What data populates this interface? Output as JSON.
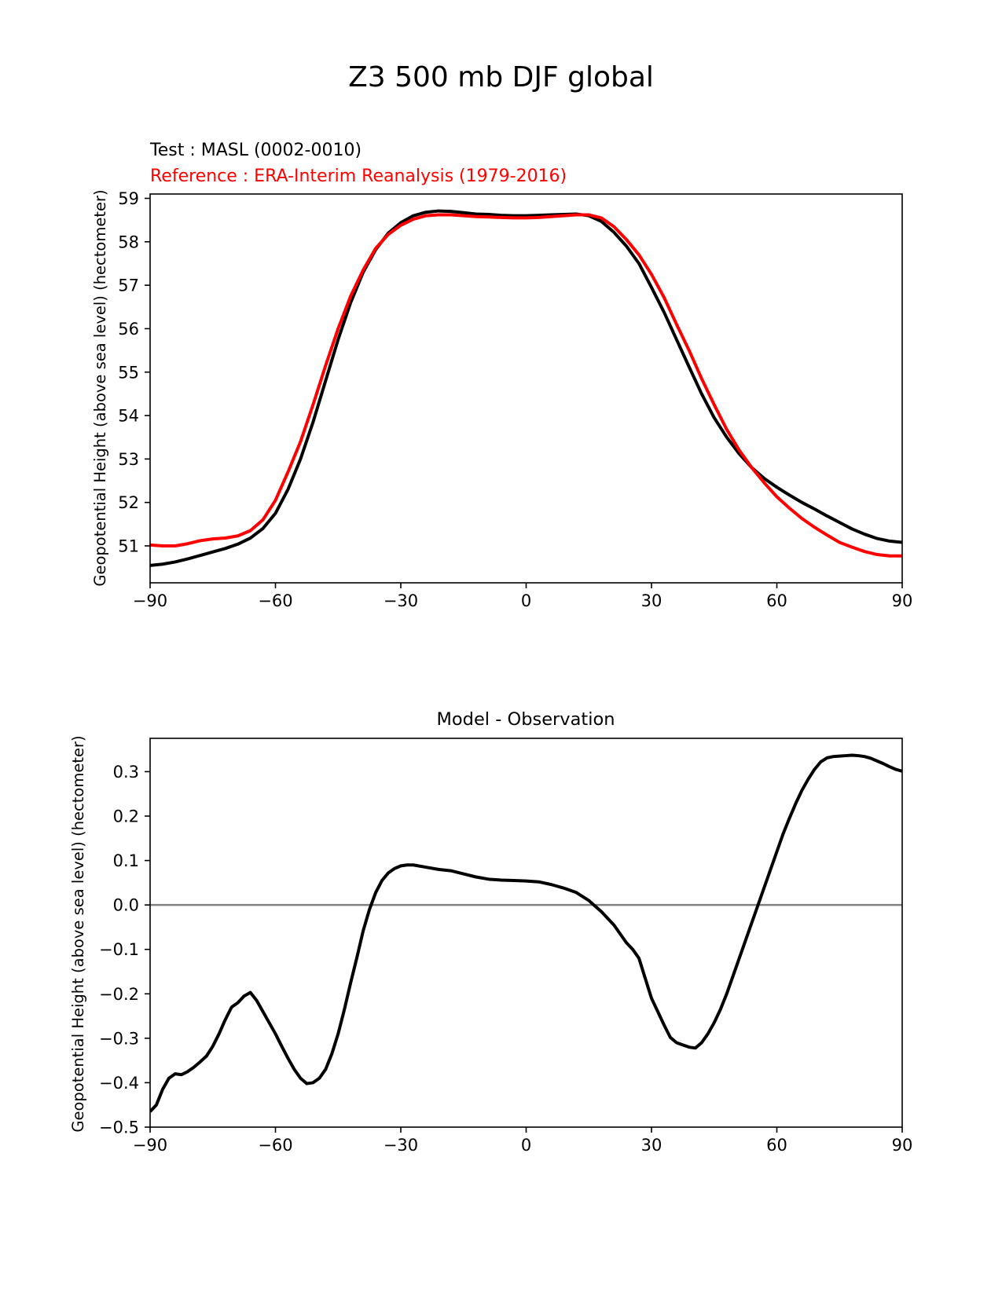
{
  "figure_title": "Z3 500 mb DJF global",
  "chart_data": [
    {
      "type": "line",
      "title": "",
      "subtitles": [
        "Test : MASL (0002-0010)",
        "Reference : ERA-Interim Reanalysis (1979-2016)"
      ],
      "xlabel": "",
      "ylabel": "Geopotential Height (above sea level) (hectometer)",
      "xlim": [
        -90,
        90
      ],
      "ylim": [
        50.15,
        59.1
      ],
      "x_ticks": [
        -90,
        -60,
        -30,
        0,
        30,
        60,
        90
      ],
      "x_tick_labels": [
        "−90",
        "−60",
        "−30",
        "0",
        "30",
        "60",
        "90"
      ],
      "y_ticks": [
        51,
        52,
        53,
        54,
        55,
        56,
        57,
        58,
        59
      ],
      "y_tick_labels": [
        "51",
        "52",
        "53",
        "54",
        "55",
        "56",
        "57",
        "58",
        "59"
      ],
      "grid": false,
      "series": [
        {
          "name": "Test : MASL (0002-0010)",
          "color": "#000000",
          "x": [
            -90,
            -87,
            -84,
            -81,
            -78,
            -75,
            -72,
            -69,
            -66,
            -63,
            -60,
            -57,
            -54,
            -51,
            -48,
            -45,
            -42,
            -39,
            -36,
            -33,
            -30,
            -27,
            -24,
            -21,
            -18,
            -15,
            -12,
            -9,
            -6,
            -3,
            0,
            3,
            6,
            9,
            12,
            15,
            18,
            21,
            24,
            27,
            30,
            33,
            36,
            39,
            42,
            45,
            48,
            51,
            54,
            57,
            60,
            63,
            66,
            69,
            72,
            75,
            78,
            81,
            84,
            87,
            90
          ],
          "values": [
            50.55,
            50.58,
            50.63,
            50.7,
            50.78,
            50.86,
            50.94,
            51.04,
            51.18,
            51.4,
            51.75,
            52.3,
            53.0,
            53.85,
            54.8,
            55.75,
            56.6,
            57.3,
            57.82,
            58.2,
            58.44,
            58.6,
            58.68,
            58.71,
            58.7,
            58.67,
            58.64,
            58.63,
            58.61,
            58.6,
            58.6,
            58.61,
            58.62,
            58.63,
            58.64,
            58.6,
            58.47,
            58.22,
            57.9,
            57.5,
            56.95,
            56.38,
            55.75,
            55.12,
            54.5,
            53.95,
            53.5,
            53.12,
            52.8,
            52.55,
            52.35,
            52.17,
            52.0,
            51.85,
            51.69,
            51.54,
            51.39,
            51.27,
            51.17,
            51.11,
            51.08
          ]
        },
        {
          "name": "Reference : ERA-Interim Reanalysis (1979-2016)",
          "color": "#ff0000",
          "x": [
            -90,
            -87,
            -84,
            -81,
            -78,
            -75,
            -72,
            -69,
            -66,
            -63,
            -60,
            -57,
            -54,
            -51,
            -48,
            -45,
            -42,
            -39,
            -36,
            -33,
            -30,
            -27,
            -24,
            -21,
            -18,
            -15,
            -12,
            -9,
            -6,
            -3,
            0,
            3,
            6,
            9,
            12,
            15,
            18,
            21,
            24,
            27,
            30,
            33,
            36,
            39,
            42,
            45,
            48,
            51,
            54,
            57,
            60,
            63,
            66,
            69,
            72,
            75,
            78,
            81,
            84,
            87,
            90
          ],
          "values": [
            51.02,
            51.0,
            51.0,
            51.05,
            51.12,
            51.16,
            51.18,
            51.23,
            51.35,
            51.6,
            52.05,
            52.7,
            53.4,
            54.25,
            55.15,
            56.0,
            56.75,
            57.35,
            57.85,
            58.17,
            58.38,
            58.52,
            58.6,
            58.62,
            58.62,
            58.6,
            58.58,
            58.57,
            58.56,
            58.55,
            58.55,
            58.56,
            58.58,
            58.6,
            58.62,
            58.62,
            58.55,
            58.35,
            58.05,
            57.7,
            57.25,
            56.72,
            56.1,
            55.5,
            54.85,
            54.25,
            53.68,
            53.2,
            52.8,
            52.45,
            52.13,
            51.87,
            51.63,
            51.43,
            51.25,
            51.08,
            50.97,
            50.87,
            50.8,
            50.77,
            50.77
          ]
        }
      ]
    },
    {
      "type": "line",
      "title": "Model - Observation",
      "xlabel": "",
      "ylabel": "Geopotential Height (above sea level) (hectometer)",
      "xlim": [
        -90,
        90
      ],
      "ylim": [
        -0.5,
        0.375
      ],
      "x_ticks": [
        -90,
        -60,
        -30,
        0,
        30,
        60,
        90
      ],
      "x_tick_labels": [
        "−90",
        "−60",
        "−30",
        "0",
        "30",
        "60",
        "90"
      ],
      "y_ticks": [
        -0.5,
        -0.4,
        -0.3,
        -0.2,
        -0.1,
        0.0,
        0.1,
        0.2,
        0.3
      ],
      "y_tick_labels": [
        "−0.5",
        "−0.4",
        "−0.3",
        "−0.2",
        "−0.1",
        "0.0",
        "0.1",
        "0.2",
        "0.3"
      ],
      "grid": false,
      "reference_line": {
        "y": 0.0,
        "color": "#808080"
      },
      "series": [
        {
          "name": "Model - Observation",
          "color": "#000000",
          "x": [
            -90,
            -88.5,
            -87,
            -85.5,
            -84,
            -82.5,
            -81,
            -79.5,
            -78,
            -76.5,
            -75,
            -73.5,
            -72,
            -70.5,
            -69,
            -67.5,
            -66,
            -64.5,
            -63,
            -61.5,
            -60,
            -58.5,
            -57,
            -55.5,
            -54,
            -52.5,
            -51,
            -49.5,
            -48,
            -46.5,
            -45,
            -43.5,
            -42,
            -40.5,
            -39,
            -37.5,
            -36,
            -34.5,
            -33,
            -31.5,
            -30,
            -28.5,
            -27,
            -24,
            -21,
            -18,
            -15,
            -12,
            -9,
            -6,
            -3,
            0,
            3,
            6,
            9,
            12,
            15,
            18,
            21,
            24,
            25.5,
            27,
            28.5,
            30,
            31.5,
            33,
            34.5,
            36,
            37.5,
            39,
            40.5,
            42,
            43.5,
            45,
            46.5,
            48,
            49.5,
            51,
            52.5,
            54,
            55.5,
            57,
            58.5,
            60,
            61.5,
            63,
            64.5,
            66,
            67.5,
            69,
            70.5,
            72,
            73.5,
            75,
            76.5,
            78,
            79.5,
            81,
            82.5,
            84,
            85.5,
            87,
            88.5,
            90
          ],
          "values": [
            -0.465,
            -0.45,
            -0.415,
            -0.39,
            -0.38,
            -0.382,
            -0.375,
            -0.365,
            -0.353,
            -0.34,
            -0.318,
            -0.29,
            -0.258,
            -0.23,
            -0.22,
            -0.205,
            -0.197,
            -0.215,
            -0.24,
            -0.265,
            -0.29,
            -0.318,
            -0.345,
            -0.37,
            -0.39,
            -0.402,
            -0.4,
            -0.39,
            -0.37,
            -0.335,
            -0.29,
            -0.235,
            -0.175,
            -0.118,
            -0.058,
            -0.01,
            0.028,
            0.055,
            0.072,
            0.082,
            0.088,
            0.09,
            0.09,
            0.085,
            0.08,
            0.077,
            0.07,
            0.063,
            0.058,
            0.056,
            0.055,
            0.054,
            0.052,
            0.046,
            0.038,
            0.028,
            0.01,
            -0.015,
            -0.045,
            -0.085,
            -0.1,
            -0.12,
            -0.165,
            -0.21,
            -0.24,
            -0.27,
            -0.298,
            -0.31,
            -0.315,
            -0.32,
            -0.322,
            -0.31,
            -0.29,
            -0.265,
            -0.235,
            -0.2,
            -0.16,
            -0.12,
            -0.08,
            -0.04,
            0.0,
            0.04,
            0.08,
            0.12,
            0.16,
            0.195,
            0.228,
            0.258,
            0.283,
            0.305,
            0.322,
            0.331,
            0.334,
            0.335,
            0.336,
            0.337,
            0.336,
            0.334,
            0.33,
            0.324,
            0.318,
            0.311,
            0.305,
            0.301
          ]
        }
      ]
    }
  ]
}
